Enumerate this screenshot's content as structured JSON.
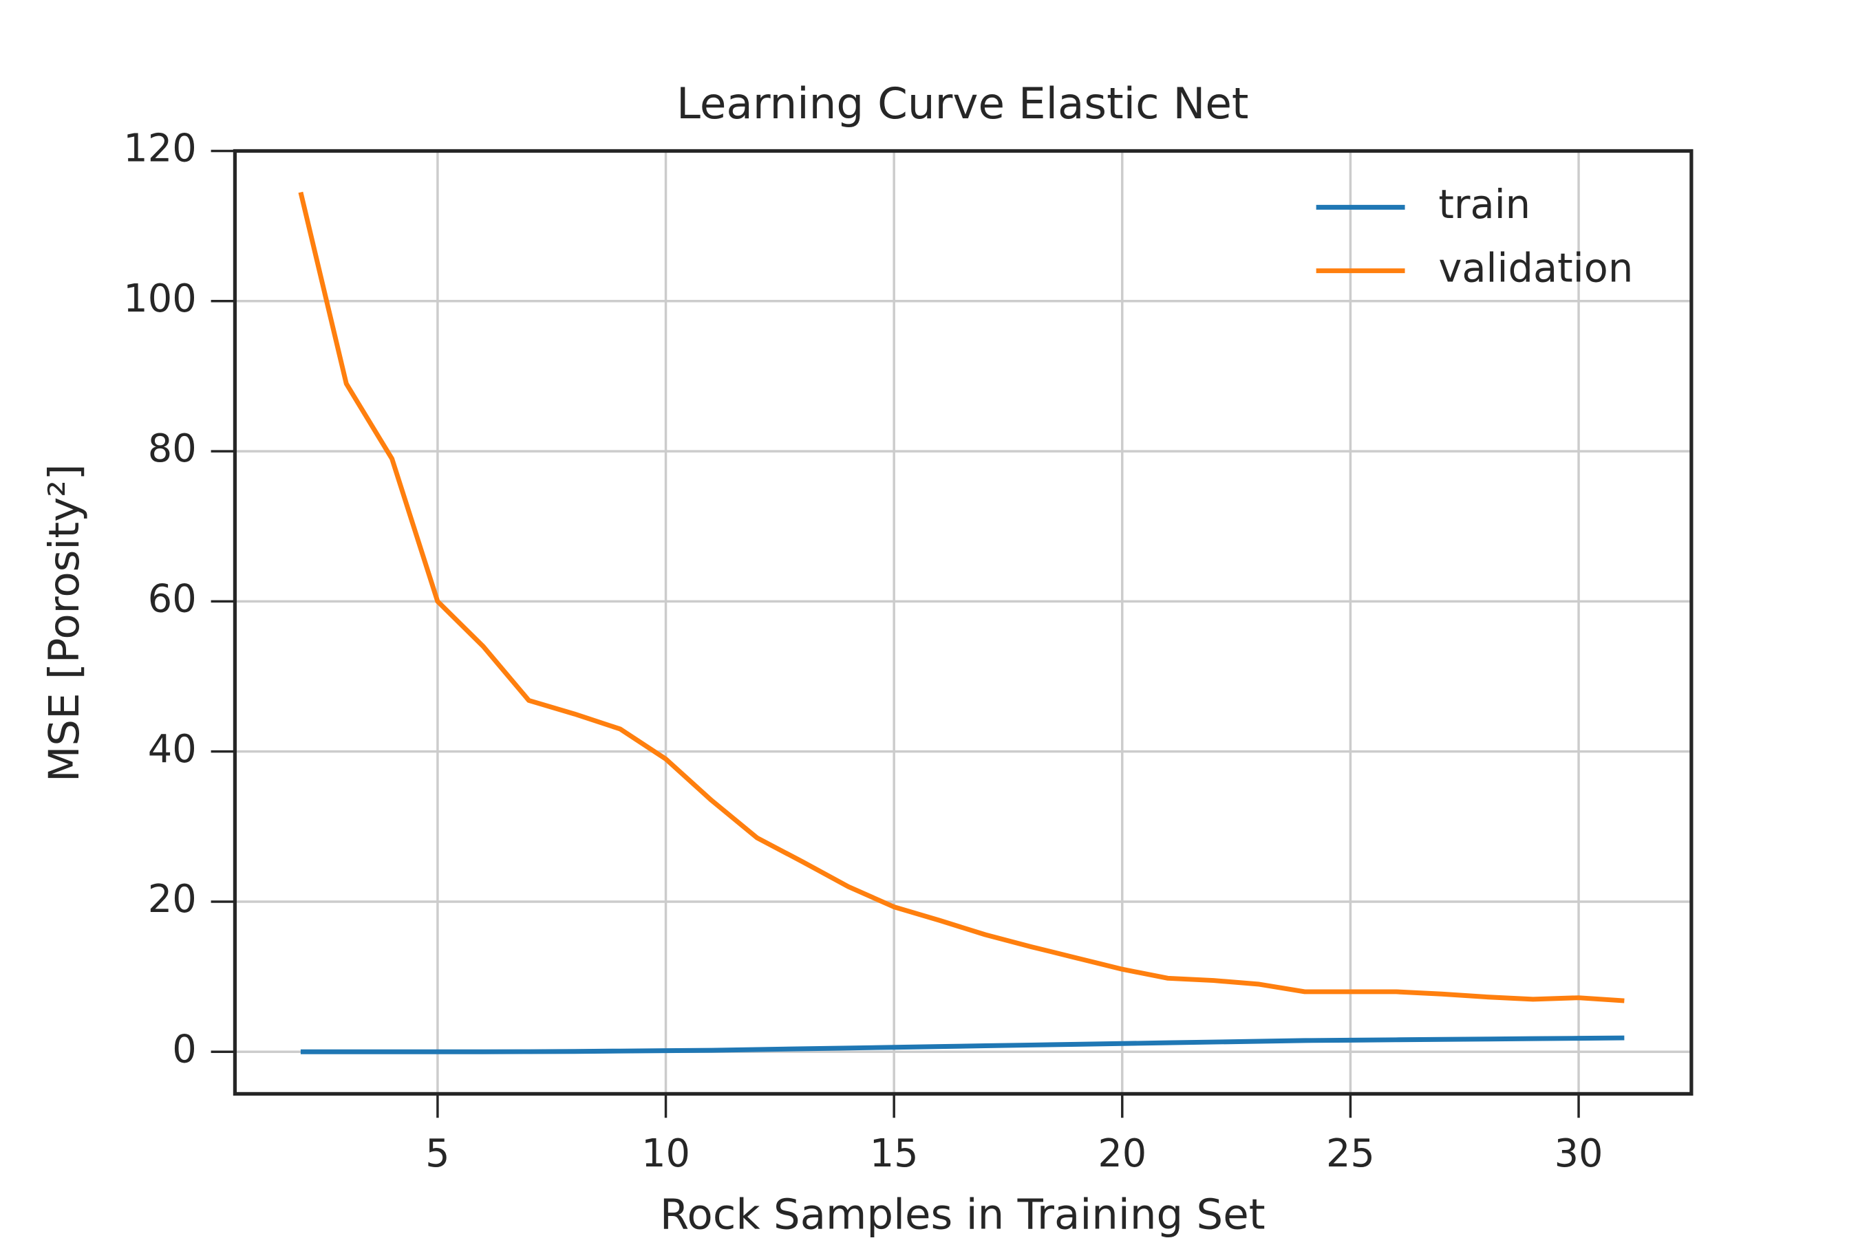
{
  "chart_data": {
    "type": "line",
    "title": "Learning Curve Elastic Net",
    "x_label": "Rock Samples in Training Set",
    "y_label": "MSE [Porosity²]",
    "x": [
      2,
      3,
      4,
      5,
      6,
      7,
      8,
      9,
      10,
      11,
      12,
      13,
      14,
      15,
      16,
      17,
      18,
      19,
      20,
      21,
      22,
      23,
      24,
      25,
      26,
      27,
      28,
      29,
      30,
      31
    ],
    "series": [
      {
        "name": "train",
        "color": "#1f77b4",
        "values": [
          0,
          0,
          0,
          0,
          0,
          0.02,
          0.05,
          0.1,
          0.15,
          0.2,
          0.3,
          0.4,
          0.5,
          0.6,
          0.7,
          0.8,
          0.9,
          1.0,
          1.1,
          1.2,
          1.3,
          1.4,
          1.5,
          1.55,
          1.6,
          1.65,
          1.7,
          1.75,
          1.8,
          1.85
        ]
      },
      {
        "name": "validation",
        "color": "#ff7f0e",
        "values": [
          114.5,
          89,
          79,
          60,
          54,
          46.8,
          45,
          43,
          39,
          33.5,
          28.5,
          25.3,
          22,
          19.3,
          17.5,
          15.6,
          14,
          12.5,
          11,
          9.8,
          9.5,
          9,
          8,
          8,
          8,
          7.7,
          7.3,
          7,
          7.2,
          6.8
        ]
      }
    ],
    "xlim": [
      0.56,
      32.47
    ],
    "xticks": [
      5,
      10,
      15,
      20,
      25,
      30
    ],
    "ylim": [
      -5.6,
      120
    ],
    "yticks": [
      0,
      20,
      40,
      60,
      80,
      100,
      120
    ],
    "grid": true,
    "legend": "upper right"
  }
}
